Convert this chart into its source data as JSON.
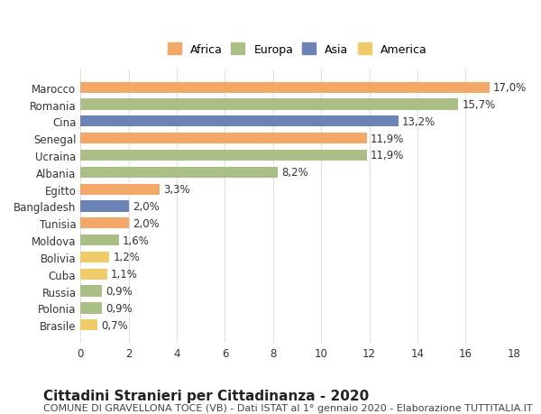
{
  "categories": [
    "Marocco",
    "Romania",
    "Cina",
    "Senegal",
    "Ucraina",
    "Albania",
    "Egitto",
    "Bangladesh",
    "Tunisia",
    "Moldova",
    "Bolivia",
    "Cuba",
    "Russia",
    "Polonia",
    "Brasile"
  ],
  "values": [
    17.0,
    15.7,
    13.2,
    11.9,
    11.9,
    8.2,
    3.3,
    2.0,
    2.0,
    1.6,
    1.2,
    1.1,
    0.9,
    0.9,
    0.7
  ],
  "labels": [
    "17,0%",
    "15,7%",
    "13,2%",
    "11,9%",
    "11,9%",
    "8,2%",
    "3,3%",
    "2,0%",
    "2,0%",
    "1,6%",
    "1,2%",
    "1,1%",
    "0,9%",
    "0,9%",
    "0,7%"
  ],
  "continents": [
    "Africa",
    "Europa",
    "Asia",
    "Africa",
    "Europa",
    "Europa",
    "Africa",
    "Asia",
    "Africa",
    "Europa",
    "America",
    "America",
    "Europa",
    "Europa",
    "America"
  ],
  "colors": {
    "Africa": "#F4A868",
    "Europa": "#AABF85",
    "Asia": "#6B83B5",
    "America": "#F0CB6A"
  },
  "legend_labels": [
    "Africa",
    "Europa",
    "Asia",
    "America"
  ],
  "title": "Cittadini Stranieri per Cittadinanza - 2020",
  "subtitle": "COMUNE DI GRAVELLONA TOCE (VB) - Dati ISTAT al 1° gennaio 2020 - Elaborazione TUTTITALIA.IT",
  "xlim": [
    0,
    18
  ],
  "xticks": [
    0,
    2,
    4,
    6,
    8,
    10,
    12,
    14,
    16,
    18
  ],
  "bg_color": "#ffffff",
  "grid_color": "#e0e0e0",
  "bar_height": 0.65,
  "title_fontsize": 11,
  "subtitle_fontsize": 8,
  "label_fontsize": 8.5,
  "tick_fontsize": 8.5,
  "legend_fontsize": 9
}
